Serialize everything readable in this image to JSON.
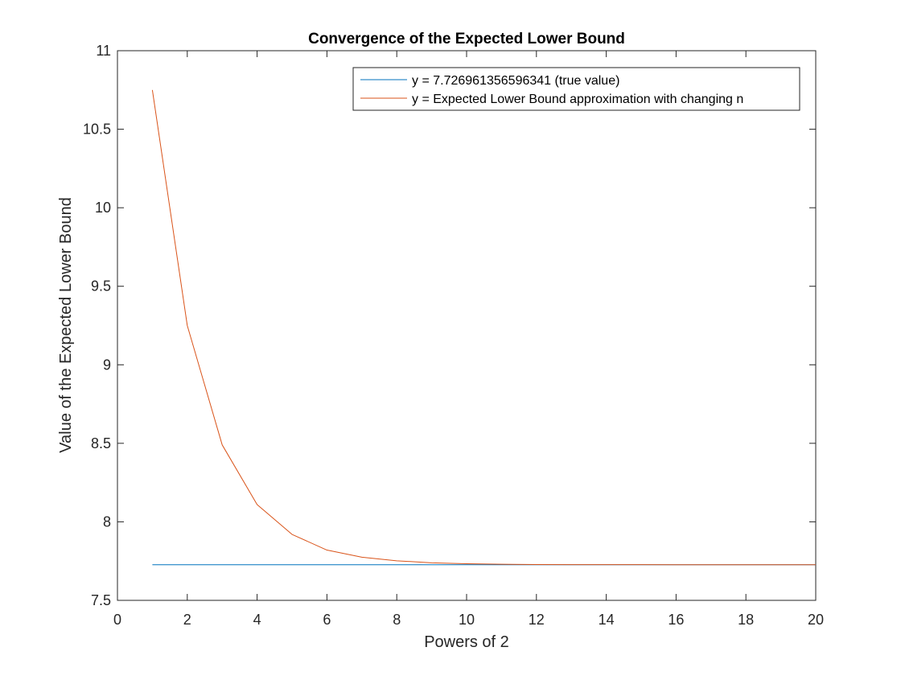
{
  "chart_data": {
    "type": "line",
    "title": "Convergence of the Expected Lower Bound",
    "xlabel": "Powers of 2",
    "ylabel": "Value of the Expected Lower Bound",
    "xlim": [
      0,
      20
    ],
    "ylim": [
      7.5,
      11
    ],
    "xticks": [
      0,
      2,
      4,
      6,
      8,
      10,
      12,
      14,
      16,
      18,
      20
    ],
    "yticks": [
      7.5,
      8,
      8.5,
      9,
      9.5,
      10,
      10.5,
      11
    ],
    "xtick_labels": [
      "0",
      "2",
      "4",
      "6",
      "8",
      "10",
      "12",
      "14",
      "16",
      "18",
      "20"
    ],
    "ytick_labels": [
      "7.5",
      "8",
      "8.5",
      "9",
      "9.5",
      "10",
      "10.5",
      "11"
    ],
    "grid": false,
    "legend_position": "top-right",
    "series": [
      {
        "name": "y = 7.726961356596341 (true value)",
        "color": "#0072BD",
        "x": [
          1,
          2,
          3,
          4,
          5,
          6,
          7,
          8,
          9,
          10,
          11,
          12,
          13,
          14,
          15,
          16,
          17,
          18,
          19,
          20
        ],
        "y": [
          7.727,
          7.727,
          7.727,
          7.727,
          7.727,
          7.727,
          7.727,
          7.727,
          7.727,
          7.727,
          7.727,
          7.727,
          7.727,
          7.727,
          7.727,
          7.727,
          7.727,
          7.727,
          7.727,
          7.727
        ]
      },
      {
        "name": "y = Expected Lower Bound approximation with changing n",
        "color": "#D95319",
        "x": [
          1,
          2,
          3,
          4,
          5,
          6,
          7,
          8,
          9,
          10,
          11,
          12,
          13,
          14,
          15,
          16,
          17,
          18,
          19,
          20
        ],
        "y": [
          10.75,
          9.25,
          8.49,
          8.11,
          7.92,
          7.82,
          7.775,
          7.752,
          7.739,
          7.733,
          7.73,
          7.728,
          7.7275,
          7.7272,
          7.7271,
          7.727,
          7.727,
          7.727,
          7.727,
          7.727
        ]
      }
    ]
  }
}
